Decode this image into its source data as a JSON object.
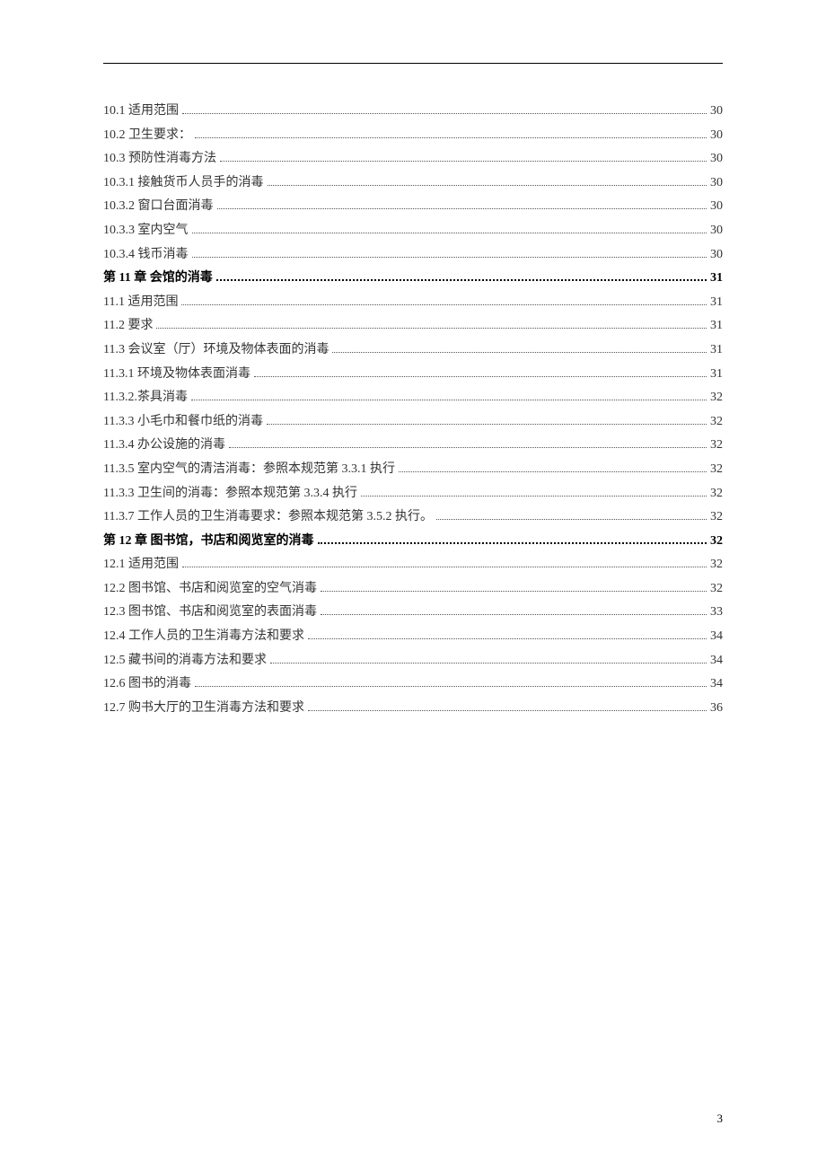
{
  "pageNumber": "3",
  "toc": [
    {
      "label": "10.1  适用范围 ",
      "page": "30",
      "bold": false
    },
    {
      "label": "10.2  卫生要求： ",
      "page": "30",
      "bold": false
    },
    {
      "label": "10.3  预防性消毒方法 ",
      "page": "30",
      "bold": false
    },
    {
      "label": "10.3.1  接触货币人员手的消毒 ",
      "page": "30",
      "bold": false
    },
    {
      "label": "10.3.2  窗口台面消毒 ",
      "page": "30",
      "bold": false
    },
    {
      "label": "10.3.3  室内空气 ",
      "page": "30",
      "bold": false
    },
    {
      "label": "10.3.4 钱币消毒 ",
      "page": "30",
      "bold": false
    },
    {
      "label": "第 11 章  会馆的消毒 ",
      "page": "31",
      "bold": true
    },
    {
      "label": "11.1  适用范围 ",
      "page": "31",
      "bold": false
    },
    {
      "label": "11.2  要求 ",
      "page": "31",
      "bold": false
    },
    {
      "label": "11.3 会议室（厅）环境及物体表面的消毒 ",
      "page": "31",
      "bold": false
    },
    {
      "label": "11.3.1 环境及物体表面消毒 ",
      "page": "31",
      "bold": false
    },
    {
      "label": "11.3.2.茶具消毒 ",
      "page": "32",
      "bold": false
    },
    {
      "label": "11.3.3  小毛巾和餐巾纸的消毒 ",
      "page": "32",
      "bold": false
    },
    {
      "label": "11.3.4  办公设施的消毒 ",
      "page": "32",
      "bold": false
    },
    {
      "label": "11.3.5  室内空气的清洁消毒：参照本规范第 3.3.1 执行 ",
      "page": "32",
      "bold": false
    },
    {
      "label": "11.3.3  卫生间的消毒：参照本规范第 3.3.4 执行 ",
      "page": "32",
      "bold": false
    },
    {
      "label": "11.3.7 工作人员的卫生消毒要求：参照本规范第 3.5.2 执行。 ",
      "page": "32",
      "bold": false
    },
    {
      "label": "第 12 章  图书馆，书店和阅览室的消毒 ",
      "page": "32",
      "bold": true
    },
    {
      "label": "12.1 适用范围 ",
      "page": "32",
      "bold": false
    },
    {
      "label": "12.2 图书馆、书店和阅览室的空气消毒 ",
      "page": "32",
      "bold": false
    },
    {
      "label": "12.3 图书馆、书店和阅览室的表面消毒 ",
      "page": "33",
      "bold": false
    },
    {
      "label": "12.4 工作人员的卫生消毒方法和要求 ",
      "page": "34",
      "bold": false
    },
    {
      "label": "12.5 藏书间的消毒方法和要求 ",
      "page": "34",
      "bold": false
    },
    {
      "label": "12.6 图书的消毒 ",
      "page": "34",
      "bold": false
    },
    {
      "label": "12.7 购书大厅的卫生消毒方法和要求 ",
      "page": "36",
      "bold": false
    }
  ]
}
